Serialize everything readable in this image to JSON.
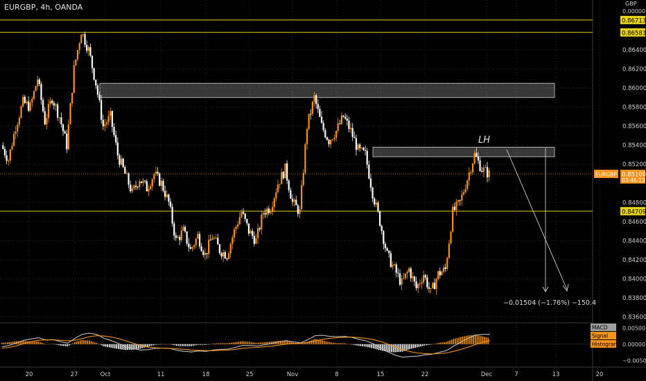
{
  "header": {
    "symbol_line": "EURGBP, 4h, OANDA",
    "currency": "GBP"
  },
  "colors": {
    "bull": "#f7931a",
    "bear": "#ffffff",
    "level": "#e6d21a",
    "macd": "#bdbdbd",
    "signal": "#f7931a"
  },
  "chart_data": {
    "type": "candlestick",
    "title": "",
    "price_axis": {
      "ticks": [
        "0.86400",
        "0.86200",
        "0.86000",
        "0.85800",
        "0.85600",
        "0.85400",
        "0.85200",
        "0.84800",
        "0.84600",
        "0.84400",
        "0.84200",
        "0.84000",
        "0.83800",
        "0.83600"
      ],
      "top_label": "0.00000"
    },
    "time_axis": {
      "ticks": [
        "20",
        "27",
        "Oct",
        "11",
        "18",
        "25",
        "Nov",
        "8",
        "15",
        "22",
        "Dec",
        "7",
        "13",
        "20"
      ]
    },
    "horizontal_levels": [
      {
        "price": 0.86713,
        "label": "0.86713"
      },
      {
        "price": 0.86583,
        "label": "0.86583"
      },
      {
        "price": 0.84709,
        "label": "0.84709"
      }
    ],
    "current_price": {
      "symbol": "EURGBP",
      "price": 0.851,
      "label": "0.85100",
      "countdown": "03:46:13"
    },
    "zones": [
      {
        "top": 0.8605,
        "bottom": 0.859
      },
      {
        "top": 0.8538,
        "bottom": 0.8528
      }
    ],
    "annotations": [
      {
        "text": "LH"
      },
      {
        "text": "−0.01504 (−1.76%) −150.4"
      }
    ],
    "price_path": [
      {
        "t": 0,
        "p": 0.854
      },
      {
        "t": 1,
        "p": 0.8525
      },
      {
        "t": 2,
        "p": 0.856
      },
      {
        "t": 3,
        "p": 0.8585
      },
      {
        "t": 4,
        "p": 0.858
      },
      {
        "t": 5,
        "p": 0.861
      },
      {
        "t": 6,
        "p": 0.8565
      },
      {
        "t": 7,
        "p": 0.859
      },
      {
        "t": 8,
        "p": 0.857
      },
      {
        "t": 9,
        "p": 0.854
      },
      {
        "t": 10,
        "p": 0.862
      },
      {
        "t": 11,
        "p": 0.866
      },
      {
        "t": 12,
        "p": 0.864
      },
      {
        "t": 13,
        "p": 0.8605
      },
      {
        "t": 14,
        "p": 0.856
      },
      {
        "t": 15,
        "p": 0.857
      },
      {
        "t": 16,
        "p": 0.853
      },
      {
        "t": 17,
        "p": 0.851
      },
      {
        "t": 18,
        "p": 0.849
      },
      {
        "t": 19,
        "p": 0.8505
      },
      {
        "t": 20,
        "p": 0.8495
      },
      {
        "t": 21,
        "p": 0.851
      },
      {
        "t": 22,
        "p": 0.85
      },
      {
        "t": 23,
        "p": 0.848
      },
      {
        "t": 24,
        "p": 0.844
      },
      {
        "t": 25,
        "p": 0.845
      },
      {
        "t": 26,
        "p": 0.843
      },
      {
        "t": 27,
        "p": 0.8445
      },
      {
        "t": 28,
        "p": 0.8425
      },
      {
        "t": 29,
        "p": 0.8445
      },
      {
        "t": 30,
        "p": 0.843
      },
      {
        "t": 31,
        "p": 0.8425
      },
      {
        "t": 32,
        "p": 0.845
      },
      {
        "t": 33,
        "p": 0.847
      },
      {
        "t": 34,
        "p": 0.845
      },
      {
        "t": 35,
        "p": 0.844
      },
      {
        "t": 36,
        "p": 0.847
      },
      {
        "t": 37,
        "p": 0.8475
      },
      {
        "t": 38,
        "p": 0.85
      },
      {
        "t": 39,
        "p": 0.8515
      },
      {
        "t": 40,
        "p": 0.848
      },
      {
        "t": 41,
        "p": 0.847
      },
      {
        "t": 42,
        "p": 0.856
      },
      {
        "t": 43,
        "p": 0.859
      },
      {
        "t": 44,
        "p": 0.856
      },
      {
        "t": 45,
        "p": 0.8545
      },
      {
        "t": 46,
        "p": 0.8555
      },
      {
        "t": 47,
        "p": 0.857
      },
      {
        "t": 48,
        "p": 0.8555
      },
      {
        "t": 49,
        "p": 0.8535
      },
      {
        "t": 50,
        "p": 0.853
      },
      {
        "t": 51,
        "p": 0.849
      },
      {
        "t": 52,
        "p": 0.846
      },
      {
        "t": 53,
        "p": 0.8425
      },
      {
        "t": 54,
        "p": 0.841
      },
      {
        "t": 55,
        "p": 0.8395
      },
      {
        "t": 56,
        "p": 0.841
      },
      {
        "t": 57,
        "p": 0.839
      },
      {
        "t": 58,
        "p": 0.8405
      },
      {
        "t": 59,
        "p": 0.8385
      },
      {
        "t": 60,
        "p": 0.8405
      },
      {
        "t": 61,
        "p": 0.841
      },
      {
        "t": 62,
        "p": 0.847
      },
      {
        "t": 63,
        "p": 0.848
      },
      {
        "t": 64,
        "p": 0.8505
      },
      {
        "t": 65,
        "p": 0.853
      },
      {
        "t": 66,
        "p": 0.8515
      },
      {
        "t": 67,
        "p": 0.851
      }
    ],
    "macd_panel": {
      "legend": [
        "MACD",
        "Signal",
        "Histogram"
      ],
      "ticks": [
        "0.00500",
        "0.00000",
        "−0.00500"
      ],
      "ylim": [
        -0.006,
        0.0055
      ],
      "macd": [
        -0.0008,
        -0.0004,
        0.0004,
        0.0012,
        0.0016,
        0.002,
        0.0013,
        0.0014,
        0.0008,
        0.0003,
        0.0018,
        0.003,
        0.0034,
        0.003,
        0.0018,
        0.0011,
        0.0002,
        -0.0008,
        -0.0014,
        -0.0018,
        -0.0017,
        -0.0013,
        -0.0012,
        -0.0013,
        -0.0019,
        -0.0022,
        -0.0024,
        -0.0021,
        -0.0022,
        -0.0018,
        -0.0016,
        -0.0015,
        -0.001,
        -0.0004,
        -0.0004,
        -0.0006,
        -0.0002,
        0.0002,
        0.0007,
        0.0011,
        0.0007,
        0.0004,
        0.0014,
        0.0026,
        0.0027,
        0.0024,
        0.0023,
        0.0024,
        0.0021,
        0.0015,
        0.001,
        0.0001,
        -0.0011,
        -0.0024,
        -0.0034,
        -0.004,
        -0.0038,
        -0.0037,
        -0.0033,
        -0.0031,
        -0.0025,
        -0.002,
        -0.0006,
        0.0006,
        0.0018,
        0.0028,
        0.003,
        0.003
      ],
      "signal": [
        -0.0012,
        -0.001,
        -0.0005,
        0.0002,
        0.0008,
        0.0012,
        0.0013,
        0.0013,
        0.0012,
        0.001,
        0.0012,
        0.0017,
        0.0023,
        0.0026,
        0.0025,
        0.0022,
        0.0017,
        0.001,
        0.0003,
        -0.0004,
        -0.0009,
        -0.0011,
        -0.0012,
        -0.0013,
        -0.0014,
        -0.0016,
        -0.0018,
        -0.0019,
        -0.002,
        -0.002,
        -0.0019,
        -0.0018,
        -0.0016,
        -0.0013,
        -0.0011,
        -0.001,
        -0.0008,
        -0.0006,
        -0.0003,
        0.0,
        0.0002,
        0.0003,
        0.0006,
        0.001,
        0.0015,
        0.0018,
        0.002,
        0.0021,
        0.0022,
        0.002,
        0.0018,
        0.0014,
        0.0008,
        0.0,
        -0.0009,
        -0.0017,
        -0.0023,
        -0.0027,
        -0.0029,
        -0.003,
        -0.0029,
        -0.0027,
        -0.0022,
        -0.0016,
        -0.0009,
        -0.0001,
        0.0006,
        0.0011
      ]
    }
  }
}
